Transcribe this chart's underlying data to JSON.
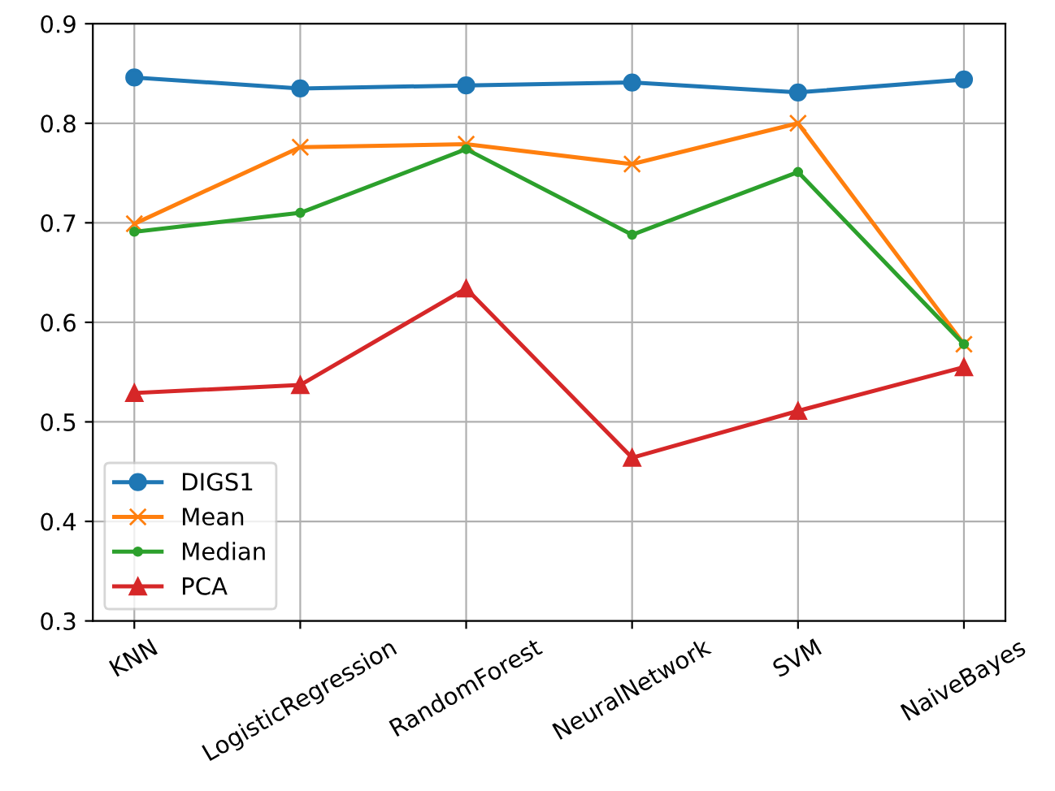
{
  "chart_data": {
    "type": "line",
    "categories": [
      "KNN",
      "LogisticRegression",
      "RandomForest",
      "NeuralNetwork",
      "SVM",
      "NaiveBayes"
    ],
    "series": [
      {
        "name": "DIGS1",
        "color": "#1f77b4",
        "marker": "circle",
        "values": [
          0.846,
          0.835,
          0.838,
          0.841,
          0.831,
          0.844
        ]
      },
      {
        "name": "Mean",
        "color": "#ff7f0e",
        "marker": "cross",
        "values": [
          0.699,
          0.776,
          0.779,
          0.759,
          0.8,
          0.578
        ]
      },
      {
        "name": "Median",
        "color": "#2ca02c",
        "marker": "point",
        "values": [
          0.691,
          0.71,
          0.774,
          0.688,
          0.751,
          0.578
        ]
      },
      {
        "name": "PCA",
        "color": "#d62728",
        "marker": "triangle",
        "values": [
          0.529,
          0.537,
          0.634,
          0.464,
          0.511,
          0.555
        ]
      }
    ],
    "ylim": [
      0.3,
      0.9
    ],
    "yticks": [
      0.3,
      0.4,
      0.5,
      0.6,
      0.7,
      0.8,
      0.9
    ],
    "grid": true,
    "legend": "bottom left",
    "line_style": "solid"
  }
}
